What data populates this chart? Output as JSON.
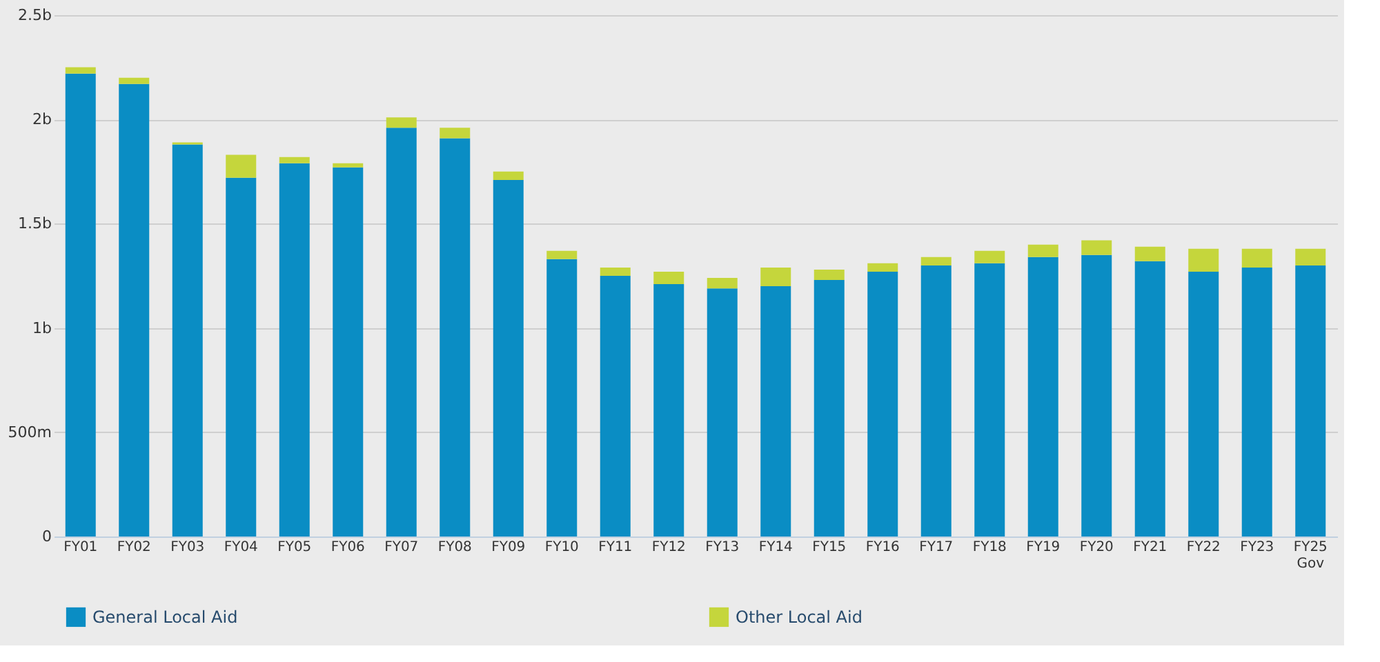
{
  "chart_data": {
    "type": "bar",
    "stacked": true,
    "categories": [
      "FY01",
      "FY02",
      "FY03",
      "FY04",
      "FY05",
      "FY06",
      "FY07",
      "FY08",
      "FY09",
      "FY10",
      "FY11",
      "FY12",
      "FY13",
      "FY14",
      "FY15",
      "FY16",
      "FY17",
      "FY18",
      "FY19",
      "FY20",
      "FY21",
      "FY22",
      "FY23",
      "FY25 Gov"
    ],
    "series": [
      {
        "name": "General Local Aid",
        "color": "#0a8dc4",
        "values": [
          2220000000,
          2170000000,
          1880000000,
          1720000000,
          1790000000,
          1770000000,
          1960000000,
          1910000000,
          1710000000,
          1330000000,
          1250000000,
          1210000000,
          1190000000,
          1200000000,
          1230000000,
          1270000000,
          1300000000,
          1310000000,
          1340000000,
          1350000000,
          1320000000,
          1270000000,
          1290000000,
          1300000000
        ]
      },
      {
        "name": "Other Local Aid",
        "color": "#c5d63c",
        "values": [
          30000000,
          30000000,
          10000000,
          110000000,
          30000000,
          20000000,
          50000000,
          50000000,
          40000000,
          40000000,
          40000000,
          60000000,
          50000000,
          90000000,
          50000000,
          40000000,
          40000000,
          60000000,
          60000000,
          70000000,
          70000000,
          110000000,
          90000000,
          80000000
        ]
      }
    ],
    "ylim": [
      0,
      2500000000
    ],
    "yticks": [
      0,
      {
        "value": 500000000,
        "label": "500m"
      },
      {
        "value": 1000000000,
        "label": "1b"
      },
      {
        "value": 1500000000,
        "label": "1.5b"
      },
      {
        "value": 2000000000,
        "label": "2b"
      },
      {
        "value": 2500000000,
        "label": "2.5b"
      }
    ],
    "grid": "y",
    "legend": "bottom"
  }
}
